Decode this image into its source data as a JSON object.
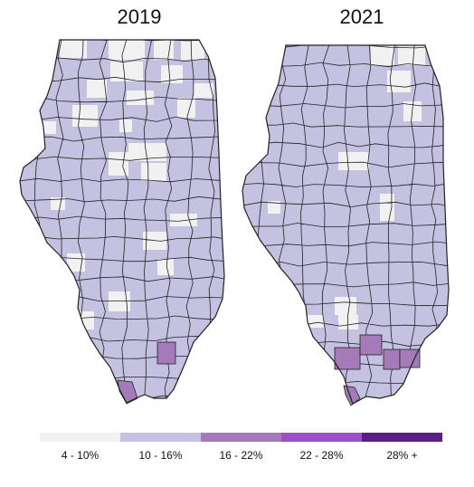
{
  "maps": [
    {
      "year": "2019",
      "title": "2019"
    },
    {
      "year": "2021",
      "title": "2021"
    }
  ],
  "legend": {
    "bins": [
      {
        "label": "4 - 10%",
        "color": "#f1f1f1"
      },
      {
        "label": "10 - 16%",
        "color": "#c4c1e1"
      },
      {
        "label": "16 - 22%",
        "color": "#a47ab8"
      },
      {
        "label": "22 - 28%",
        "color": "#9d4ec9"
      },
      {
        "label": "28% +",
        "color": "#5a1f86"
      }
    ]
  }
}
